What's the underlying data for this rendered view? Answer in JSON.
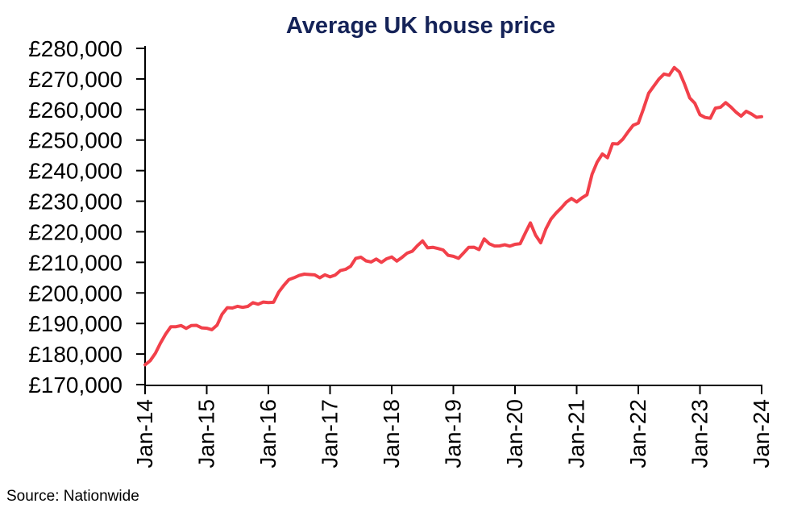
{
  "chart_data": {
    "type": "line",
    "title": "Average UK house price",
    "source": "Source: Nationwide",
    "title_color": "#152358",
    "line_color": "#f2404a",
    "axis_color": "#000000",
    "grid": false,
    "legend": "none",
    "xlabel": "",
    "ylabel": "",
    "ylim": [
      170000,
      280000
    ],
    "y_ticks": [
      170000,
      180000,
      190000,
      200000,
      210000,
      220000,
      230000,
      240000,
      250000,
      260000,
      270000,
      280000
    ],
    "y_tick_labels": [
      "£170,000",
      "£180,000",
      "£190,000",
      "£200,000",
      "£210,000",
      "£220,000",
      "£230,000",
      "£240,000",
      "£250,000",
      "£260,000",
      "£270,000",
      "£280,000"
    ],
    "x_tick_labels": [
      "Jan-14",
      "Jan-15",
      "Jan-16",
      "Jan-17",
      "Jan-18",
      "Jan-19",
      "Jan-20",
      "Jan-21",
      "Jan-22",
      "Jan-23",
      "Jan-24"
    ],
    "series": [
      {
        "name": "Average UK house price",
        "start": "Jan-14",
        "end": "Jan-24",
        "frequency": "monthly",
        "values": [
          176491,
          177846,
          180264,
          183577,
          186512,
          188903,
          188949,
          189306,
          188374,
          189333,
          189388,
          188559,
          188446,
          187964,
          189454,
          193048,
          195166,
          195055,
          195621,
          195279,
          195585,
          196807,
          196305,
          196999,
          196829,
          196930,
          200251,
          202436,
          204368,
          204968,
          205715,
          206145,
          206015,
          205904,
          204947,
          205898,
          205240,
          205846,
          207308,
          207699,
          208711,
          211301,
          211671,
          210495,
          210116,
          211085,
          209988,
          211156,
          211756,
          210402,
          211625,
          213000,
          213618,
          215444,
          217010,
          214745,
          214922,
          214534,
          214044,
          212281,
          211966,
          211304,
          213102,
          214920,
          214946,
          214180,
          217663,
          216096,
          215352,
          215368,
          215734,
          215282,
          215897,
          216092,
          219583,
          222915,
          218902,
          216403,
          220936,
          224123,
          226129,
          227826,
          229721,
          230920,
          229748,
          231061,
          232134,
          238831,
          242832,
          245432,
          244229,
          248857,
          248742,
          250311,
          252687,
          254822,
          255556,
          260230,
          265312,
          267620,
          269914,
          271613,
          271209,
          273751,
          272259,
          268282,
          263788,
          262068,
          258297,
          257406,
          257122,
          260441,
          260736,
          262239,
          260828,
          259153,
          257808,
          259423,
          258557,
          257443,
          257656
        ]
      }
    ]
  }
}
